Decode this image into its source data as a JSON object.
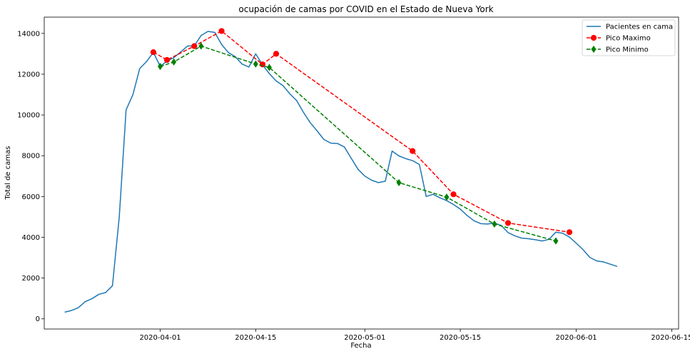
{
  "chart_data": {
    "type": "line",
    "title": "ocupación de camas por COVID en el Estado de Nueva York",
    "xlabel": "Fecha",
    "ylabel": "Total de camas",
    "x_tick_labels": [
      "2020-04-01",
      "2020-04-15",
      "2020-05-01",
      "2020-05-15",
      "2020-06-01",
      "2020-06-15"
    ],
    "y_ticks": [
      0,
      2000,
      4000,
      6000,
      8000,
      10000,
      12000,
      14000
    ],
    "xlim": [
      "2020-03-15",
      "2020-06-16"
    ],
    "ylim": [
      -500,
      14800
    ],
    "grid": false,
    "legend_position": "top-right",
    "series": [
      {
        "name": "Pacientes en cama",
        "color": "#1f77b4",
        "style": "solid",
        "marker": "none",
        "points": [
          [
            "2020-03-18",
            326
          ],
          [
            "2020-03-19",
            410
          ],
          [
            "2020-03-20",
            550
          ],
          [
            "2020-03-21",
            840
          ],
          [
            "2020-03-22",
            990
          ],
          [
            "2020-03-23",
            1200
          ],
          [
            "2020-03-24",
            1290
          ],
          [
            "2020-03-25",
            1620
          ],
          [
            "2020-03-26",
            5000
          ],
          [
            "2020-03-27",
            10250
          ],
          [
            "2020-03-28",
            11000
          ],
          [
            "2020-03-29",
            12280
          ],
          [
            "2020-03-30",
            12620
          ],
          [
            "2020-03-31",
            13080
          ],
          [
            "2020-04-01",
            12380
          ],
          [
            "2020-04-02",
            12650
          ],
          [
            "2020-04-03",
            12810
          ],
          [
            "2020-04-04",
            13090
          ],
          [
            "2020-04-05",
            13380
          ],
          [
            "2020-04-06",
            13390
          ],
          [
            "2020-04-07",
            13900
          ],
          [
            "2020-04-08",
            14100
          ],
          [
            "2020-04-09",
            14050
          ],
          [
            "2020-04-10",
            13460
          ],
          [
            "2020-04-11",
            13060
          ],
          [
            "2020-04-12",
            12860
          ],
          [
            "2020-04-13",
            12500
          ],
          [
            "2020-04-14",
            12350
          ],
          [
            "2020-04-15",
            13000
          ],
          [
            "2020-04-16",
            12460
          ],
          [
            "2020-04-17",
            12030
          ],
          [
            "2020-04-18",
            11670
          ],
          [
            "2020-04-19",
            11440
          ],
          [
            "2020-04-20",
            11040
          ],
          [
            "2020-04-21",
            10710
          ],
          [
            "2020-04-22",
            10130
          ],
          [
            "2020-04-23",
            9620
          ],
          [
            "2020-04-24",
            9220
          ],
          [
            "2020-04-25",
            8800
          ],
          [
            "2020-04-26",
            8620
          ],
          [
            "2020-04-27",
            8600
          ],
          [
            "2020-04-28",
            8430
          ],
          [
            "2020-04-29",
            7880
          ],
          [
            "2020-04-30",
            7340
          ],
          [
            "2020-05-01",
            7000
          ],
          [
            "2020-05-02",
            6800
          ],
          [
            "2020-05-03",
            6680
          ],
          [
            "2020-05-04",
            6750
          ],
          [
            "2020-05-05",
            8230
          ],
          [
            "2020-05-06",
            7990
          ],
          [
            "2020-05-07",
            7860
          ],
          [
            "2020-05-08",
            7760
          ],
          [
            "2020-05-09",
            7570
          ],
          [
            "2020-05-10",
            6000
          ],
          [
            "2020-05-11",
            6110
          ],
          [
            "2020-05-12",
            5940
          ],
          [
            "2020-05-13",
            5800
          ],
          [
            "2020-05-14",
            5610
          ],
          [
            "2020-05-15",
            5380
          ],
          [
            "2020-05-16",
            5070
          ],
          [
            "2020-05-17",
            4810
          ],
          [
            "2020-05-18",
            4670
          ],
          [
            "2020-05-19",
            4650
          ],
          [
            "2020-05-20",
            4700
          ],
          [
            "2020-05-21",
            4580
          ],
          [
            "2020-05-22",
            4230
          ],
          [
            "2020-05-23",
            4070
          ],
          [
            "2020-05-24",
            3960
          ],
          [
            "2020-05-25",
            3930
          ],
          [
            "2020-05-26",
            3880
          ],
          [
            "2020-05-27",
            3820
          ],
          [
            "2020-05-28",
            3900
          ],
          [
            "2020-05-29",
            4250
          ],
          [
            "2020-05-30",
            4200
          ],
          [
            "2020-05-31",
            4010
          ],
          [
            "2020-06-01",
            3710
          ],
          [
            "2020-06-02",
            3390
          ],
          [
            "2020-06-03",
            3010
          ],
          [
            "2020-06-04",
            2840
          ],
          [
            "2020-06-05",
            2790
          ],
          [
            "2020-06-06",
            2680
          ],
          [
            "2020-06-07",
            2570
          ]
        ]
      },
      {
        "name": "Pico Maximo",
        "color": "#ff0000",
        "style": "dashed",
        "marker": "circle",
        "points": [
          [
            "2020-03-31",
            13080
          ],
          [
            "2020-04-02",
            12700
          ],
          [
            "2020-04-06",
            13380
          ],
          [
            "2020-04-10",
            14120
          ],
          [
            "2020-04-16",
            12480
          ],
          [
            "2020-04-18",
            13000
          ],
          [
            "2020-05-08",
            8230
          ],
          [
            "2020-05-14",
            6110
          ],
          [
            "2020-05-22",
            4700
          ],
          [
            "2020-05-31",
            4250
          ]
        ]
      },
      {
        "name": "Pico Minimo",
        "color": "#008000",
        "style": "dashed",
        "marker": "diamond",
        "points": [
          [
            "2020-04-01",
            12380
          ],
          [
            "2020-04-03",
            12600
          ],
          [
            "2020-04-07",
            13380
          ],
          [
            "2020-04-15",
            12500
          ],
          [
            "2020-04-17",
            12330
          ],
          [
            "2020-05-06",
            6680
          ],
          [
            "2020-05-13",
            5970
          ],
          [
            "2020-05-20",
            4650
          ],
          [
            "2020-05-29",
            3820
          ]
        ]
      }
    ]
  }
}
